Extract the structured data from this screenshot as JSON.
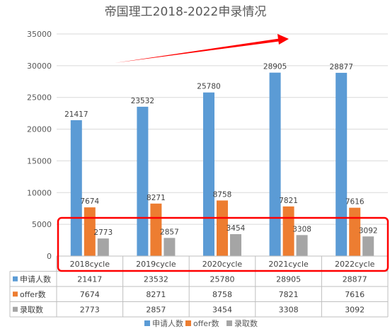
{
  "chart_data": {
    "type": "bar",
    "title": "帝国理工2018-2022申录情况",
    "categories": [
      "2018cycle",
      "2019cycle",
      "2020cycle",
      "2021cycle",
      "2022cycle"
    ],
    "ylim": [
      0,
      35000
    ],
    "yticks": [
      0,
      5000,
      10000,
      15000,
      20000,
      25000,
      30000,
      35000
    ],
    "series": [
      {
        "name": "申请人数",
        "color": "#5B9BD5",
        "values": [
          21417,
          23532,
          25780,
          28905,
          28877
        ]
      },
      {
        "name": "offer数",
        "color": "#ED7D31",
        "values": [
          7674,
          8271,
          8758,
          7821,
          7616
        ]
      },
      {
        "name": "录取数",
        "color": "#A5A5A5",
        "values": [
          2773,
          2857,
          3454,
          3308,
          3092
        ]
      }
    ],
    "grid": true,
    "legend": "bottom",
    "data_table": true,
    "annotations": [
      "red-trend-arrow",
      "red-highlight-box"
    ],
    "annotation_color": "#FF0000"
  }
}
